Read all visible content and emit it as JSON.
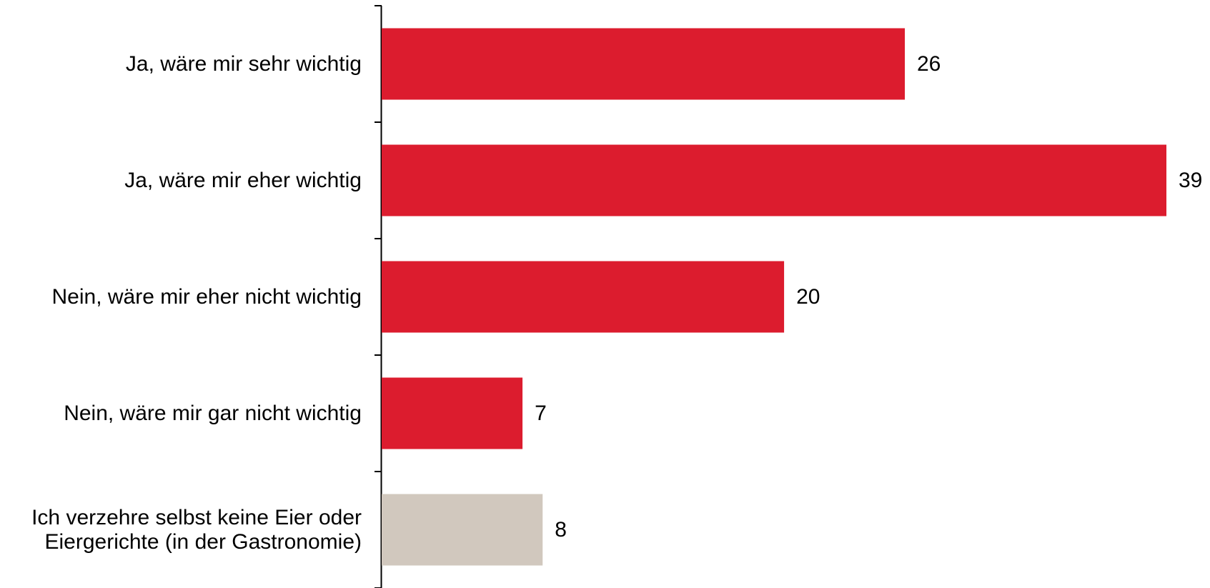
{
  "chart_data": {
    "type": "bar",
    "orientation": "horizontal",
    "title": "",
    "xlabel": "",
    "ylabel": "",
    "categories": [
      [
        "Ja, wäre mir sehr wichtig"
      ],
      [
        "Ja, wäre mir eher wichtig"
      ],
      [
        "Nein, wäre mir eher nicht wichtig"
      ],
      [
        "Nein, wäre mir gar nicht wichtig"
      ],
      [
        "Ich verzehre selbst keine Eier oder",
        "Eiergerichte (in der Gastronomie)"
      ]
    ],
    "values": [
      26,
      39,
      20,
      7,
      8
    ],
    "value_labels": [
      "26",
      "39",
      "20",
      "7",
      "8"
    ],
    "bar_colors": [
      "#dc1c2e",
      "#dc1c2e",
      "#dc1c2e",
      "#dc1c2e",
      "#d1c8be"
    ],
    "xlim": [
      0,
      39
    ],
    "grid": false,
    "legend": false
  }
}
